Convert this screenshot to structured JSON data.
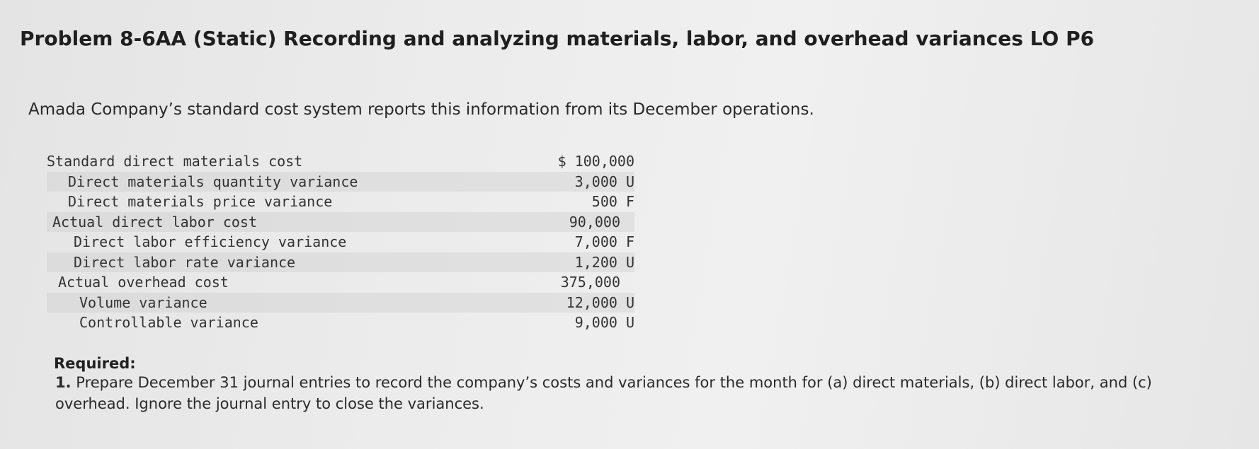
{
  "header": {
    "title": "Problem 8-6AA (Static) Recording and analyzing materials, labor, and overhead variances LO P6"
  },
  "intro": "Amada Company’s standard cost system reports this information from its December operations.",
  "table": {
    "rows": [
      {
        "label": "Standard direct materials cost",
        "amount": "$ 100,000"
      },
      {
        "label": "Direct materials quantity variance",
        "amount": "3,000 U"
      },
      {
        "label": "Direct materials price variance",
        "amount": "500 F"
      },
      {
        "label": "Actual direct labor cost",
        "amount": "90,000"
      },
      {
        "label": "Direct labor efficiency variance",
        "amount": "7,000 F"
      },
      {
        "label": "Direct labor rate variance",
        "amount": "1,200 U"
      },
      {
        "label": "Actual overhead cost",
        "amount": "375,000"
      },
      {
        "label": "Volume variance",
        "amount": "12,000 U"
      },
      {
        "label": "Controllable variance",
        "amount": "9,000 U"
      }
    ]
  },
  "required": {
    "heading": "Required:",
    "number": "1.",
    "text": "Prepare December 31 journal entries to record the company’s costs and variances for the month for (a) direct materials, (b) direct labor, and (c) overhead. Ignore the journal entry to close the variances."
  }
}
